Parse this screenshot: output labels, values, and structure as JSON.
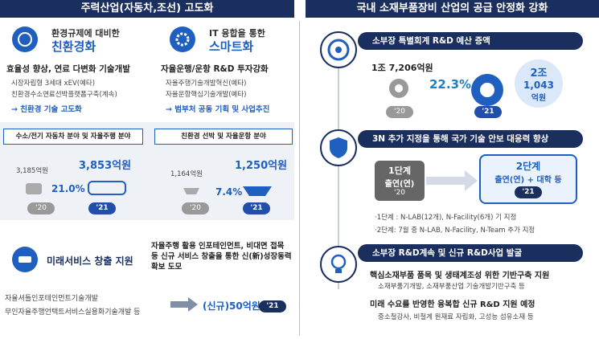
{
  "header": {
    "left": "주력산업(자동차,조선) 고도화",
    "right": "국내 소재부품장비 산업의 공급 안정화 강화"
  },
  "left": {
    "eco": {
      "title1": "환경규제에 대비한",
      "title2": "친환경화",
      "bullet": "효율성 향상, 연료 다변화 기술개발",
      "subs": [
        "시장자립형 3세대 xEV(예타)",
        "친환경수소연료선박플랫폼구축(계속)"
      ],
      "result": "→ 친환경 기술 고도화"
    },
    "smart": {
      "title1": "IT 융합을 통한",
      "title2": "스마트화",
      "bullet": "자율운행/운항 R&D 투자강화",
      "subs": [
        "자율주행기술개발혁신(예타)",
        "자율운항핵심기술개발(예타)"
      ],
      "result": "→ 범부처 공동 기획 및 사업추진"
    },
    "car": {
      "title": "수소/전기 자동차 분야 및 자율주행 분야",
      "before": "3,185억원",
      "after": "3,853억원",
      "rate": "21.0%",
      "y1": "'20",
      "y2": "'21"
    },
    "ship": {
      "title": "친환경 선박 및 자율운항 분야",
      "before": "1,164억원",
      "after": "1,250억원",
      "rate": "7.4%",
      "y1": "'20",
      "y2": "'21"
    },
    "service": {
      "title": "미래서비스 창출 지원",
      "bullet": "자율주행 활용 인포테인먼트, 비대면 접목 등 신규 서비스 창출을 통한 신(新)성장동력 확보 도모",
      "projects": [
        "자율셔틀인포테인먼트기술개발",
        "무인자율주행언택트서비스실용화기술개발 등"
      ],
      "budget": "(신규)50억원",
      "year": "'21"
    }
  },
  "right": {
    "s1": {
      "title": "소부장 특별회계 R&D 예산 증액",
      "before": "1조 7,206억원",
      "rate": "22.3%",
      "after": [
        "2조",
        "1,043",
        "억원"
      ],
      "y1": "'20",
      "y2": "'21"
    },
    "s2": {
      "title": "3N 추가 지정을 통해 국가 기술 안보 대응력 향상",
      "stage1": [
        "1단계",
        "출연(연)",
        "'20"
      ],
      "stage2": [
        "2단계",
        "출연(연) + 대학 등",
        "'21"
      ],
      "notes": [
        "·1단계 : N-LAB(12개), N-Facility(6개) 기 지정",
        "·2단계: 7월 중 N-LAB, N-Facility, N-Team 추가 지정"
      ]
    },
    "s3": {
      "title": "소부장 R&D계속 및 신규 R&D사업 발굴",
      "items": [
        {
          "bullet": "핵심소재부품 품목 및 생태계조성 위한 기반구축 지원",
          "sub": "소재부품기개발, 소재부품산업 기술개발기반구축 등"
        },
        {
          "bullet": "미래 수요를 반영한 융복합 신규 R&D 지원 예정",
          "sub": "중소철강사, 비철계 원재료 자립화, 고성능 섬유소재 등"
        }
      ]
    }
  }
}
